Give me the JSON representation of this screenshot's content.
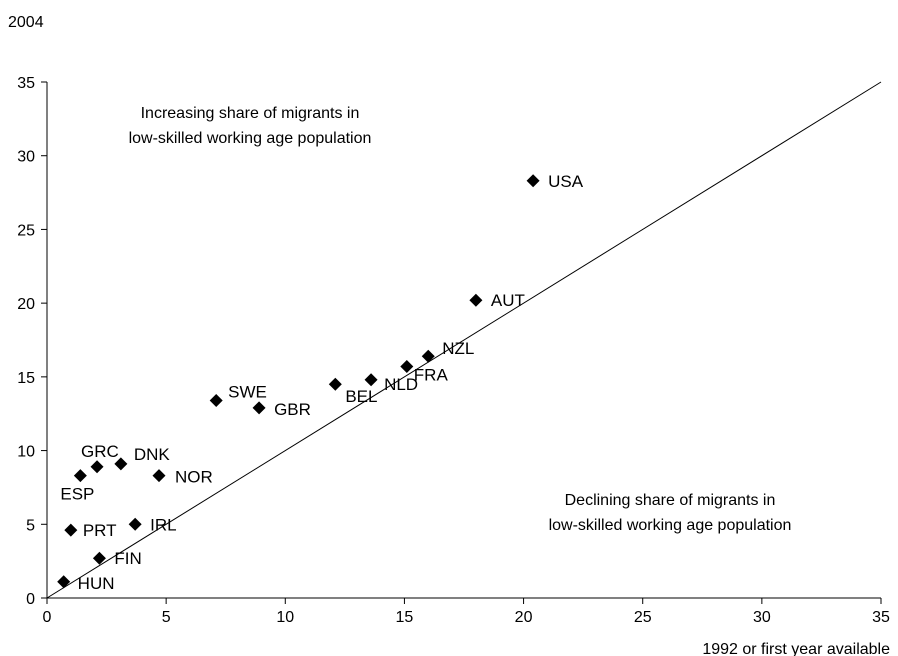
{
  "chart_data": {
    "type": "scatter",
    "ylabel": "2004",
    "xlabel": "1992 or first year available",
    "xlim": [
      0,
      35
    ],
    "ylim": [
      0,
      35
    ],
    "xticks": [
      0,
      5,
      10,
      15,
      20,
      25,
      30,
      35
    ],
    "yticks": [
      0,
      5,
      10,
      15,
      20,
      25,
      30,
      35
    ],
    "grid": false,
    "reference_line": {
      "from": [
        0,
        0
      ],
      "to": [
        35,
        35
      ]
    },
    "marker_color": "#000000",
    "annotations": [
      {
        "lines": [
          "Increasing share of migrants in",
          "low-skilled working age population"
        ]
      },
      {
        "lines": [
          "Declining share of migrants in",
          "low-skilled working age population"
        ]
      }
    ],
    "points": [
      {
        "label": "USA",
        "x": 20.4,
        "y": 28.3
      },
      {
        "label": "AUT",
        "x": 18.0,
        "y": 20.2
      },
      {
        "label": "NZL",
        "x": 16.0,
        "y": 16.4
      },
      {
        "label": "FRA",
        "x": 15.1,
        "y": 15.7
      },
      {
        "label": "NLD",
        "x": 13.6,
        "y": 14.8
      },
      {
        "label": "BEL",
        "x": 12.1,
        "y": 14.5
      },
      {
        "label": "SWE",
        "x": 7.1,
        "y": 13.4
      },
      {
        "label": "GBR",
        "x": 8.9,
        "y": 12.9
      },
      {
        "label": "GRC",
        "x": 2.1,
        "y": 8.9
      },
      {
        "label": "DNK",
        "x": 3.1,
        "y": 9.1
      },
      {
        "label": "ESP",
        "x": 1.4,
        "y": 8.3
      },
      {
        "label": "NOR",
        "x": 4.7,
        "y": 8.3
      },
      {
        "label": "PRT",
        "x": 1.0,
        "y": 4.6
      },
      {
        "label": "IRL",
        "x": 3.7,
        "y": 5.0
      },
      {
        "label": "FIN",
        "x": 2.2,
        "y": 2.7
      },
      {
        "label": "HUN",
        "x": 0.7,
        "y": 1.1
      }
    ]
  }
}
